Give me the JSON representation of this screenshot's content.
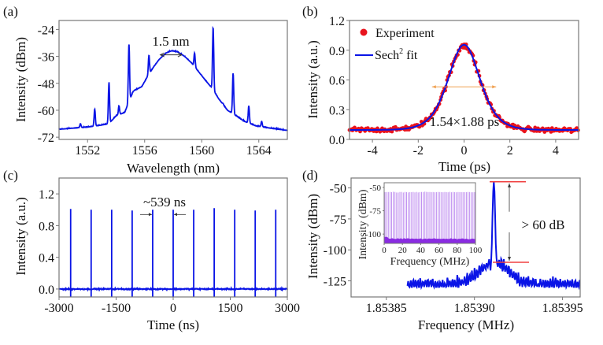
{
  "chart_data": [
    {
      "id": "a",
      "panel_label": "(a)",
      "type": "line",
      "title": "",
      "xlabel": "Wavelength (nm)",
      "ylabel": "Intensity (dBm)",
      "xlim": [
        1550,
        1566
      ],
      "ylim": [
        -73,
        -20
      ],
      "xticks": [
        1552,
        1556,
        1560,
        1564
      ],
      "yticks": [
        -24,
        -36,
        -48,
        -60,
        -72
      ],
      "grid": false,
      "line_color": "#0a14e6",
      "annotation": {
        "text": "1.5 nm",
        "arrow_from": 1557.1,
        "arrow_to": 1558.6,
        "arrow_y": -35.3
      },
      "baseline_points": [
        [
          1550.0,
          -68.5
        ],
        [
          1551.0,
          -68.0
        ],
        [
          1552.0,
          -67.5
        ],
        [
          1552.8,
          -66.8
        ],
        [
          1553.5,
          -66.0
        ],
        [
          1554.0,
          -62.5
        ],
        [
          1554.6,
          -61.0
        ],
        [
          1555.2,
          -51.5
        ],
        [
          1555.8,
          -49.5
        ],
        [
          1556.2,
          -45.0
        ],
        [
          1556.6,
          -41.0
        ],
        [
          1557.0,
          -37.5
        ],
        [
          1557.5,
          -34.5
        ],
        [
          1557.9,
          -33.5
        ],
        [
          1558.3,
          -34.0
        ],
        [
          1558.8,
          -36.0
        ],
        [
          1559.3,
          -39.0
        ],
        [
          1559.8,
          -43.0
        ],
        [
          1560.3,
          -47.0
        ],
        [
          1560.7,
          -50.0
        ],
        [
          1561.2,
          -55.0
        ],
        [
          1561.8,
          -60.0
        ],
        [
          1562.3,
          -62.0
        ],
        [
          1563.0,
          -65.0
        ],
        [
          1563.8,
          -67.0
        ],
        [
          1564.8,
          -68.0
        ],
        [
          1566.0,
          -69.0
        ]
      ],
      "peaks": [
        [
          1551.5,
          -66.0
        ],
        [
          1552.5,
          -59.5
        ],
        [
          1553.5,
          -47.5
        ],
        [
          1554.2,
          -58.0
        ],
        [
          1554.9,
          -30.5
        ],
        [
          1556.3,
          -35.5
        ],
        [
          1559.5,
          -34.5
        ],
        [
          1560.8,
          -23.0
        ],
        [
          1561.5,
          -57.0
        ],
        [
          1562.2,
          -43.5
        ],
        [
          1563.3,
          -58.0
        ],
        [
          1564.2,
          -65.0
        ]
      ]
    },
    {
      "id": "b",
      "panel_label": "(b)",
      "type": "scatter+line",
      "xlabel": "Time (ps)",
      "ylabel": "Intensity (a.u.)",
      "xlim": [
        -5,
        5
      ],
      "ylim": [
        0,
        1.2
      ],
      "xticks": [
        -4,
        -2,
        0,
        2,
        4
      ],
      "yticks": [
        0.0,
        0.3,
        0.6,
        0.9,
        1.2
      ],
      "ytick_labels": [
        "0.0",
        "0.3",
        "0.6",
        "0.9",
        "1.2"
      ],
      "grid": false,
      "legend": {
        "placement": "top-left",
        "entries": [
          {
            "label": "Experiment",
            "marker": "red-dot"
          },
          {
            "label": "Sech",
            "superscript": "2",
            "suffix": " fit",
            "marker": "blue-line"
          }
        ]
      },
      "series": [
        {
          "name": "Experiment",
          "color": "#e8141e",
          "kind": "scatter",
          "x_range": [
            -5,
            5
          ],
          "count": 240,
          "noise": 0.035
        },
        {
          "name": "Sech2 fit",
          "color": "#0a14e6",
          "kind": "sech2",
          "amplitude": 0.86,
          "offset": 0.095,
          "center": 0.0,
          "tau": 0.93
        }
      ],
      "annotation": {
        "text": "1.54×1.88 ps",
        "arrow_from": -1.4,
        "arrow_to": 1.4,
        "arrow_y": 0.53,
        "arrow_color": "#f0a050"
      }
    },
    {
      "id": "c",
      "panel_label": "(c)",
      "type": "line",
      "xlabel": "Time (ns)",
      "ylabel": "Intensity (a.u.)",
      "xlim": [
        -3000,
        3000
      ],
      "ylim": [
        -0.1,
        1.4
      ],
      "xticks": [
        -3000,
        -1500,
        0,
        1500,
        3000
      ],
      "yticks": [
        0.0,
        0.4,
        0.8,
        1.2
      ],
      "ytick_labels": [
        "0.0",
        "0.4",
        "0.8",
        "1.2"
      ],
      "grid": false,
      "line_color": "#0a14e6",
      "pulse_times": [
        -2695,
        -2156,
        -1617,
        -1078,
        -539,
        0,
        539,
        1078,
        1617,
        2156,
        2695
      ],
      "pulse_heights": [
        1.01,
        1.0,
        1.0,
        0.99,
        1.0,
        1.0,
        1.0,
        1.02,
        1.0,
        0.99,
        1.0
      ],
      "annotation": {
        "text": "~539 ns",
        "pulse_a": -539,
        "pulse_b": 0,
        "arrow_y": 0.94
      }
    },
    {
      "id": "d",
      "panel_label": "(d)",
      "type": "line",
      "xlabel": "Frequency (MHz)",
      "ylabel": "Intensity (dBm)",
      "xlim": [
        1.85383,
        1.85396
      ],
      "ylim": [
        -138,
        -42
      ],
      "xticks": [
        1.85385,
        1.8539,
        1.85395
      ],
      "xtick_labels": [
        "1.85385",
        "1.85390",
        "1.85395"
      ],
      "yticks": [
        -50,
        -75,
        -100,
        -125
      ],
      "grid": false,
      "line_color": "#0a14e6",
      "peak": {
        "x": 1.853911,
        "y": -45
      },
      "annotation": {
        "text": "> 60 dB",
        "top_level": -45,
        "bottom_level": -110,
        "line_color": "#f04040"
      },
      "inset": {
        "xlabel": "Frequency (MHz)",
        "ylabel": "Intensity (dBm)",
        "xlim": [
          0,
          100
        ],
        "ylim": [
          -110,
          -45
        ],
        "xticks": [
          0,
          20,
          40,
          60,
          80,
          100
        ],
        "yticks": [
          -50,
          -75,
          -100
        ],
        "line_count": 55,
        "line_top": -55,
        "floor": -103,
        "line_color": "#c090f0",
        "floor_color": "#8a2be2"
      }
    }
  ]
}
